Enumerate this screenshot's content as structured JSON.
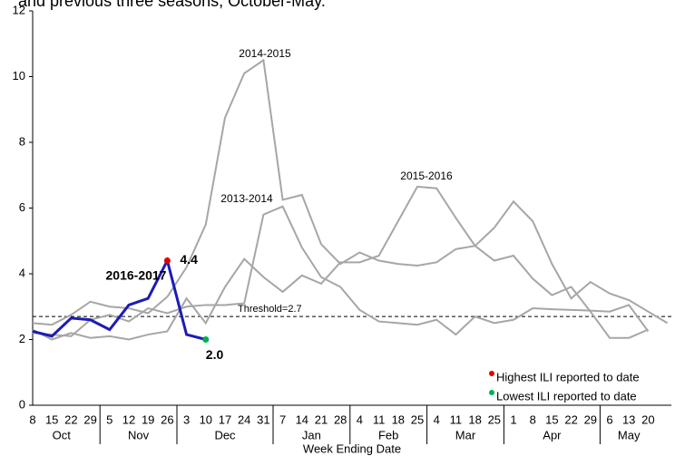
{
  "chart_data": {
    "type": "line",
    "title": "and previous three seasons, October-May.",
    "x_label": "Week Ending Date",
    "categories": [
      "8",
      "15",
      "22",
      "29",
      "5",
      "12",
      "19",
      "26",
      "3",
      "10",
      "17",
      "24",
      "31",
      "7",
      "14",
      "21",
      "28",
      "4",
      "11",
      "18",
      "25",
      "4",
      "11",
      "18",
      "25",
      "1",
      "8",
      "15",
      "22",
      "29",
      "6",
      "13",
      "20",
      null
    ],
    "months": [
      "Oct",
      "Nov",
      "Dec",
      "Jan",
      "Feb",
      "Mar",
      "Apr",
      "May"
    ],
    "ylim": [
      0,
      12
    ],
    "yticks": [
      0,
      2,
      4,
      6,
      8,
      10,
      12
    ],
    "threshold": {
      "label": "Threshold=2.7",
      "value": 2.7
    },
    "series": [
      {
        "name": "2016-2017",
        "color": "#1c1cb4",
        "values": [
          2.25,
          2.1,
          2.65,
          2.6,
          2.3,
          3.05,
          3.25,
          4.4,
          2.15,
          2.0,
          null,
          null,
          null,
          null,
          null,
          null,
          null,
          null,
          null,
          null,
          null,
          null,
          null,
          null,
          null,
          null,
          null,
          null,
          null,
          null,
          null,
          null,
          null,
          null
        ],
        "value_labels": [
          null,
          null,
          null,
          null,
          null,
          null,
          null,
          "4.4",
          null,
          "2.0",
          null,
          null,
          null,
          null,
          null,
          null,
          null,
          null,
          null,
          null,
          null,
          null,
          null,
          null,
          null,
          null,
          null,
          null,
          null,
          null,
          null,
          null,
          null,
          null
        ]
      },
      {
        "name": "2014-2015",
        "color": "#a6a6a6",
        "values": [
          2.5,
          2.45,
          2.75,
          3.15,
          3.0,
          2.95,
          2.8,
          3.3,
          4.2,
          5.5,
          8.75,
          10.1,
          10.5,
          6.25,
          6.4,
          4.9,
          4.3,
          4.65,
          4.4,
          4.3,
          4.25,
          4.35,
          4.75,
          4.85,
          5.4,
          6.2,
          5.6,
          4.3,
          3.25,
          3.75,
          3.4,
          3.2,
          2.85,
          2.5
        ]
      },
      {
        "name": "2015-2016",
        "color": "#a6a6a6",
        "values": [
          2.3,
          2.0,
          2.2,
          2.05,
          2.1,
          2.0,
          2.15,
          2.25,
          3.25,
          2.5,
          3.6,
          4.45,
          3.9,
          3.45,
          3.95,
          3.7,
          4.35,
          4.35,
          4.55,
          5.6,
          6.65,
          6.6,
          5.7,
          4.85,
          4.4,
          4.55,
          3.85,
          3.35,
          3.6,
          2.85,
          2.05,
          2.05,
          2.3,
          null
        ]
      },
      {
        "name": "2013-2014",
        "color": "#a6a6a6",
        "values": [
          2.2,
          2.15,
          2.1,
          2.6,
          2.75,
          2.55,
          2.95,
          2.8,
          3.0,
          3.05,
          3.05,
          3.1,
          5.8,
          6.05,
          4.8,
          3.9,
          3.6,
          2.9,
          2.55,
          2.5,
          2.45,
          2.6,
          2.15,
          2.7,
          2.5,
          2.6,
          2.95,
          2.92,
          2.9,
          2.88,
          2.85,
          3.05,
          2.25,
          null
        ]
      }
    ],
    "markers": [
      {
        "name": "Highest ILI reported to date",
        "color": "#e00000"
      },
      {
        "name": "Lowest ILI reported to date",
        "color": "#00b050"
      }
    ]
  }
}
